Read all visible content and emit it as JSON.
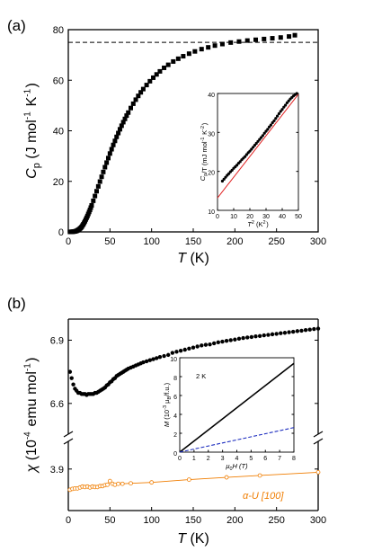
{
  "chart_data": [
    {
      "panel_label": "(a)",
      "type": "scatter",
      "xlabel": "T",
      "xlabel_unit": "(K)",
      "ylabel": "C",
      "ylabel_sub": "p",
      "ylabel_unit": "(J mol-1 K-1)",
      "ylabel_tokens": [
        "(J mol",
        "-1",
        " K",
        "-1",
        ")"
      ],
      "xlim": [
        0,
        300
      ],
      "ylim": [
        0,
        80
      ],
      "xticks": [
        "0",
        "50",
        "100",
        "150",
        "200",
        "250",
        "300"
      ],
      "yticks": [
        "0",
        "20",
        "40",
        "60",
        "80"
      ],
      "reference_line": {
        "y": 75,
        "style": "dashed"
      },
      "series": [
        {
          "marker": "filled-square",
          "color": "#000000",
          "x": [
            2,
            3,
            4,
            5,
            6,
            7,
            8,
            9,
            10,
            11,
            12,
            13,
            14,
            15,
            16,
            17,
            18,
            19,
            20,
            21,
            22,
            23,
            24,
            25,
            26,
            27,
            28,
            30,
            32,
            34,
            36,
            38,
            40,
            42,
            44,
            46,
            48,
            50,
            52,
            54,
            56,
            58,
            60,
            62,
            64,
            66,
            68,
            70,
            72,
            75,
            78,
            81,
            84,
            87,
            90,
            94,
            98,
            102,
            106,
            110,
            115,
            120,
            126,
            132,
            138,
            145,
            152,
            160,
            168,
            176,
            185,
            195,
            205,
            215,
            225,
            235,
            245,
            255,
            265,
            272
          ],
          "y": [
            0.01,
            0.02,
            0.04,
            0.07,
            0.1,
            0.15,
            0.2,
            0.3,
            0.4,
            0.6,
            0.8,
            1.0,
            1.3,
            1.6,
            2.0,
            2.5,
            3.0,
            3.6,
            4.2,
            4.9,
            5.6,
            6.3,
            7.1,
            7.9,
            8.7,
            9.6,
            10.5,
            12.3,
            14.2,
            16.1,
            18.0,
            19.9,
            21.8,
            23.7,
            25.6,
            27.4,
            29.2,
            31.0,
            32.7,
            34.4,
            36.0,
            37.6,
            39.1,
            40.6,
            42.0,
            43.4,
            44.7,
            46.0,
            47.2,
            49.0,
            50.7,
            52.3,
            53.8,
            55.2,
            56.5,
            58.1,
            59.6,
            61.0,
            62.3,
            63.5,
            64.9,
            66.1,
            67.4,
            68.5,
            69.5,
            70.5,
            71.4,
            72.3,
            73.0,
            73.7,
            74.3,
            74.9,
            75.3,
            75.7,
            76.0,
            76.3,
            76.6,
            76.9,
            77.3,
            77.8
          ]
        }
      ],
      "inset": {
        "type": "scatter",
        "xlabel": "T",
        "xlabel_sup": "2",
        "xlabel_unit": "(K2)",
        "xlabel_tokens": [
          "(K",
          "2",
          ")"
        ],
        "ylabel": "C",
        "ylabel_sub": "p",
        "ylabel_rest": "/T (mJ mol-1 K-2)",
        "ylabel_tokens": [
          "/T (mJ mol",
          "-1",
          " K",
          "-2",
          ")"
        ],
        "xlim": [
          0,
          50
        ],
        "ylim": [
          10,
          40
        ],
        "xticks": [
          "0",
          "10",
          "20",
          "30",
          "40",
          "50"
        ],
        "yticks": [
          "10",
          "20",
          "30",
          "40"
        ],
        "series": [
          {
            "marker": "filled-circle",
            "color": "#000000",
            "x": [
              3,
              4,
              5,
              6,
              7,
              8,
              9,
              10,
              11,
              12,
              13,
              14,
              15,
              16,
              17,
              18,
              19,
              20,
              21,
              22,
              23,
              24,
              25,
              26,
              27,
              28,
              29,
              30,
              31,
              32,
              33,
              34,
              35,
              36,
              37,
              38,
              39,
              40,
              41,
              42,
              43,
              44,
              45,
              46,
              47,
              48,
              49
            ],
            "y": [
              17.5,
              18.0,
              18.5,
              19.0,
              19.4,
              19.9,
              20.3,
              20.8,
              21.2,
              21.6,
              22.1,
              22.5,
              23.0,
              23.4,
              23.8,
              24.3,
              24.8,
              25.2,
              25.7,
              26.2,
              26.7,
              27.2,
              27.7,
              28.2,
              28.7,
              29.2,
              29.8,
              30.3,
              30.8,
              31.4,
              31.9,
              32.5,
              33.0,
              33.6,
              34.2,
              34.8,
              35.4,
              35.9,
              36.5,
              37.0,
              37.6,
              38.1,
              38.6,
              39.0,
              39.4,
              39.7,
              40.0
            ]
          },
          {
            "type": "line",
            "color": "#e02020",
            "x": [
              0,
              50
            ],
            "y": [
              13.2,
              39.8
            ]
          }
        ]
      }
    },
    {
      "panel_label": "(b)",
      "type": "scatter",
      "xlabel": "T",
      "xlabel_unit": "(K)",
      "ylabel": "χ",
      "ylabel_unit": "(10-4 emu mol-1)",
      "ylabel_tokens": [
        "(10",
        "-4",
        " emu mol",
        "-1",
        ")"
      ],
      "xlim": [
        0,
        300
      ],
      "axis_break": true,
      "upper_ylim": [
        6.45,
        7.0
      ],
      "lower_ylim": [
        3.81,
        3.96
      ],
      "upper_yticks": [
        "6.9",
        "6.6"
      ],
      "lower_yticks": [
        "3.9"
      ],
      "xticks": [
        "0",
        "50",
        "100",
        "150",
        "200",
        "250",
        "300"
      ],
      "series": [
        {
          "marker": "filled-circle",
          "color": "#000000",
          "segment": "upper",
          "x": [
            2,
            4,
            6,
            8,
            10,
            12,
            14,
            16,
            18,
            20,
            22,
            24,
            26,
            28,
            30,
            32,
            34,
            36,
            38,
            40,
            42,
            44,
            46,
            48,
            50,
            52,
            54,
            56,
            58,
            60,
            62,
            64,
            66,
            68,
            70,
            72,
            75,
            78,
            81,
            84,
            87,
            90,
            94,
            98,
            102,
            106,
            110,
            115,
            120,
            125,
            130,
            135,
            140,
            145,
            150,
            155,
            160,
            165,
            170,
            175,
            180,
            185,
            190,
            195,
            200,
            205,
            210,
            215,
            220,
            225,
            230,
            235,
            240,
            245,
            250,
            255,
            260,
            265,
            270,
            275,
            280,
            285,
            290,
            295,
            300
          ],
          "y": [
            6.75,
            6.72,
            6.69,
            6.67,
            6.66,
            6.65,
            6.65,
            6.645,
            6.645,
            6.645,
            6.64,
            6.645,
            6.645,
            6.645,
            6.645,
            6.65,
            6.65,
            6.655,
            6.66,
            6.665,
            6.67,
            6.675,
            6.685,
            6.69,
            6.7,
            6.705,
            6.715,
            6.72,
            6.73,
            6.735,
            6.74,
            6.745,
            6.75,
            6.755,
            6.76,
            6.765,
            6.77,
            6.775,
            6.78,
            6.785,
            6.79,
            6.795,
            6.8,
            6.805,
            6.81,
            6.815,
            6.82,
            6.825,
            6.83,
            6.84,
            6.845,
            6.85,
            6.855,
            6.86,
            6.865,
            6.87,
            6.875,
            6.878,
            6.88,
            6.885,
            6.89,
            6.893,
            6.897,
            6.9,
            6.903,
            6.907,
            6.91,
            6.913,
            6.915,
            6.918,
            6.92,
            6.923,
            6.925,
            6.928,
            6.93,
            6.933,
            6.935,
            6.938,
            6.94,
            6.943,
            6.945,
            6.948,
            6.95,
            6.953,
            6.955
          ]
        },
        {
          "name": "α-U [100]",
          "marker": "open-circle",
          "line": true,
          "color": "#f07d00",
          "segment": "lower",
          "x": [
            2,
            5,
            8,
            11,
            14,
            17,
            20,
            23,
            26,
            29,
            32,
            35,
            38,
            41,
            44,
            47,
            50,
            53,
            56,
            60,
            65,
            75,
            100,
            145,
            190,
            230,
            300
          ],
          "y": [
            3.855,
            3.857,
            3.858,
            3.858,
            3.86,
            3.862,
            3.861,
            3.862,
            3.86,
            3.862,
            3.861,
            3.861,
            3.863,
            3.863,
            3.865,
            3.866,
            3.874,
            3.868,
            3.866,
            3.868,
            3.868,
            3.869,
            3.871,
            3.877,
            3.882,
            3.886,
            3.893
          ]
        }
      ],
      "inset": {
        "type": "line",
        "xlabel": "μ",
        "xlabel_sub": "0",
        "xlabel_rest": "H (T)",
        "ylabel": "M",
        "ylabel_rest": "(10-3 μB/f.u.)",
        "ylabel_tokens": [
          "(10",
          "-3",
          " μ",
          "B",
          "/f.u.)"
        ],
        "annotation": "2 K",
        "xlim": [
          0,
          8
        ],
        "ylim": [
          0,
          10
        ],
        "xticks": [
          "0",
          "1",
          "2",
          "3",
          "4",
          "5",
          "6",
          "7",
          "8"
        ],
        "yticks": [
          "0",
          "2",
          "4",
          "6",
          "8",
          "10"
        ],
        "series": [
          {
            "style": "solid",
            "color": "#000000",
            "x": [
              0,
              8
            ],
            "y": [
              0,
              9.4
            ]
          },
          {
            "style": "dashed",
            "color": "#2030c0",
            "x": [
              0,
              8
            ],
            "y": [
              0,
              2.6
            ]
          }
        ]
      }
    }
  ]
}
